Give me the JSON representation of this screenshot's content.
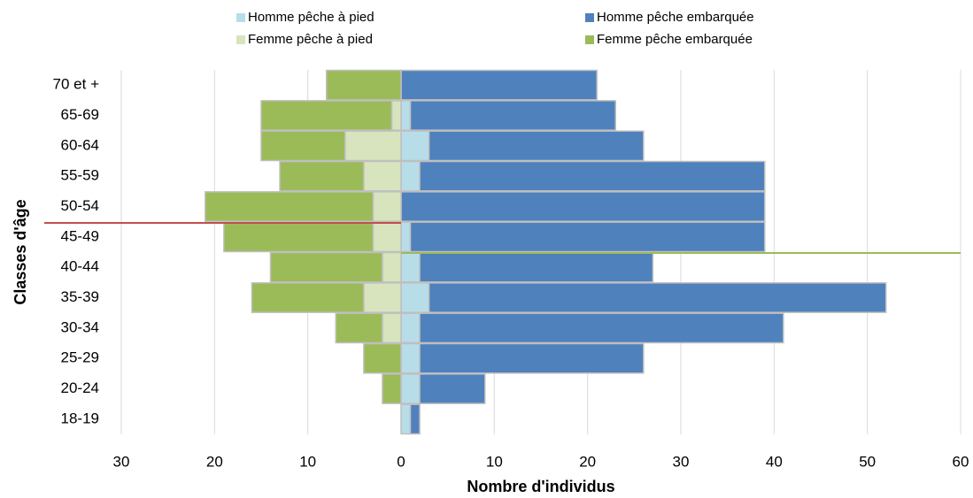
{
  "chart_data": {
    "type": "bar",
    "orientation": "horizontal",
    "stacked": true,
    "xlabel": "Nombre d'individus",
    "ylabel": "Classes d'âge",
    "categories": [
      "18-19",
      "20-24",
      "25-29",
      "30-34",
      "35-39",
      "40-44",
      "45-49",
      "50-54",
      "55-59",
      "60-64",
      "65-69",
      "70 et +"
    ],
    "series": [
      {
        "name": "Homme pêche à pied",
        "color": "#b7dde8",
        "values": [
          1,
          2,
          2,
          2,
          3,
          2,
          1,
          0,
          2,
          3,
          1,
          0
        ]
      },
      {
        "name": "Homme pêche embarquée",
        "color": "#4f81bd",
        "values": [
          1,
          7,
          24,
          39,
          49,
          25,
          38,
          39,
          37,
          23,
          22,
          21
        ]
      },
      {
        "name": "Femme pêche à pied",
        "color": "#d7e4bd",
        "values": [
          0,
          0,
          0,
          -2,
          -4,
          -2,
          -3,
          -3,
          -4,
          -6,
          -1,
          0
        ]
      },
      {
        "name": "Femme pêche embarquée",
        "color": "#9bbb59",
        "values": [
          0,
          -2,
          -4,
          -5,
          -12,
          -12,
          -16,
          -18,
          -9,
          -9,
          -14,
          -8
        ]
      }
    ],
    "xlim": [
      -30,
      60
    ],
    "xticks": [
      {
        "value": -30,
        "label": "30"
      },
      {
        "value": -20,
        "label": "20"
      },
      {
        "value": -10,
        "label": "10"
      },
      0,
      10,
      20,
      30,
      40,
      50,
      60
    ],
    "grid": true,
    "legend": "top"
  }
}
